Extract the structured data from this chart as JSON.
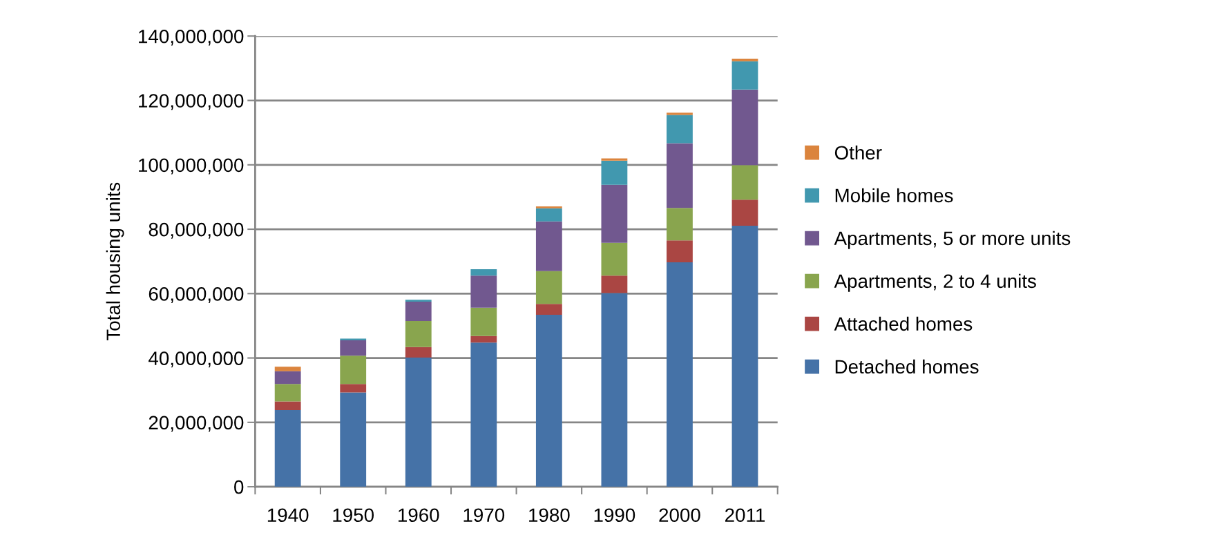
{
  "chart_data": {
    "type": "bar",
    "stacked": true,
    "ylabel": "Total housing units",
    "categories": [
      "1940",
      "1950",
      "1960",
      "1970",
      "1980",
      "1990",
      "2000",
      "2011"
    ],
    "series": [
      {
        "name": "Detached homes",
        "color": "#4572a7",
        "values": [
          23800000,
          29300000,
          40100000,
          44800000,
          53400000,
          60200000,
          69700000,
          81100000
        ]
      },
      {
        "name": "Attached homes",
        "color": "#aa4643",
        "values": [
          2700000,
          2600000,
          3300000,
          2000000,
          3400000,
          5400000,
          6800000,
          8100000
        ]
      },
      {
        "name": "Apartments, 2 to 4 units",
        "color": "#89a54e",
        "values": [
          5400000,
          8800000,
          8100000,
          8800000,
          10200000,
          10200000,
          10100000,
          10700000
        ]
      },
      {
        "name": "Apartments, 5 or more units",
        "color": "#71588f",
        "values": [
          4000000,
          4800000,
          6000000,
          10000000,
          15400000,
          18000000,
          20100000,
          23500000
        ]
      },
      {
        "name": "Mobile homes",
        "color": "#4198af",
        "values": [
          0,
          500000,
          600000,
          2000000,
          4100000,
          7500000,
          8800000,
          8800000
        ]
      },
      {
        "name": "Other",
        "color": "#db843d",
        "values": [
          1400000,
          0,
          0,
          0,
          600000,
          700000,
          700000,
          800000
        ]
      }
    ],
    "ylim": [
      0,
      140000000
    ],
    "yticks": [
      {
        "value": 0,
        "label": "0"
      },
      {
        "value": 20000000,
        "label": "20,000,000"
      },
      {
        "value": 40000000,
        "label": "40,000,000"
      },
      {
        "value": 60000000,
        "label": "60,000,000"
      },
      {
        "value": 80000000,
        "label": "80,000,000"
      },
      {
        "value": 100000000,
        "label": "100,000,000"
      },
      {
        "value": 120000000,
        "label": "120,000,000"
      },
      {
        "value": 140000000,
        "label": "140,000,000"
      }
    ],
    "grid": "y",
    "legend": "right"
  }
}
